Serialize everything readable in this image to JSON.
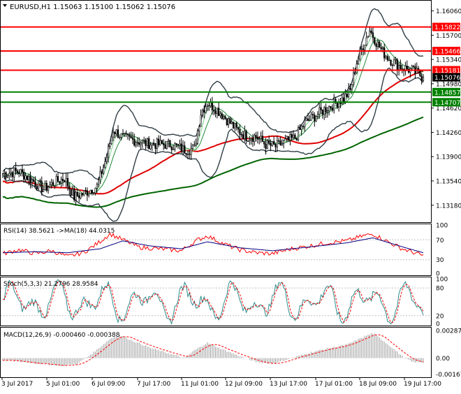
{
  "header": {
    "symbol_line": "EURUSD,H1  1.15063 1.15100 1.15062 1.15076",
    "rsi_label": "RSI(14) 38.5621  ->MA(18) 44.0315",
    "stoch_label": "Stoch(5,3,3) 21.2796 28.9584",
    "macd_label": "MACD(12,26,9) -0.000460 -0.000388"
  },
  "colors": {
    "background": "#ffffff",
    "border": "#000000",
    "candle": "#000000",
    "bollinger": "#2f3e46",
    "ma_fast1": "#1e8a3a",
    "ma_fast2": "#7bd389",
    "ma_red": "#e00000",
    "ma_green": "#006400",
    "level_red": "#ff0000",
    "level_green": "#008000",
    "label_red_bg": "#ff0000",
    "label_green_bg": "#008000",
    "current_bg": "#000000",
    "rsi_line": "#ff0000",
    "rsi_ma": "#000080",
    "stoch_main": "#2e8b8b",
    "stoch_signal": "#ff0000",
    "macd_hist": "#a0a0a0",
    "macd_signal": "#ff0000"
  },
  "chart_data": [
    {
      "type": "candlestick",
      "name": "main",
      "ylim": [
        1.1295,
        1.1618
      ],
      "y_ticks": [
        "1.16060",
        "1.15700",
        "1.15340",
        "1.14980",
        "1.14620",
        "1.14260",
        "1.13900",
        "1.13540",
        "1.13180"
      ],
      "levels": [
        {
          "value": 1.15822,
          "label": "1.15822",
          "color": "red"
        },
        {
          "value": 1.15466,
          "label": "1.15466",
          "color": "red"
        },
        {
          "value": 1.15181,
          "label": "1.15181",
          "color": "red"
        },
        {
          "value": 1.14857,
          "label": "1.14857",
          "color": "green"
        },
        {
          "value": 1.14707,
          "label": "1.14707",
          "color": "green"
        }
      ],
      "current_price": {
        "value": 1.15076,
        "label": "1.15076"
      },
      "x_labels": [
        "3 Jul 2017",
        "5 Jul 01:00",
        "6 Jul 09:00",
        "7 Jul 17:00",
        "11 Jul 01:00",
        "12 Jul 09:00",
        "13 Jul 17:00",
        "17 Jul 01:00",
        "18 Jul 09:00",
        "19 Jul 17:00"
      ],
      "anchors": [
        [
          0,
          1.1365
        ],
        [
          10,
          1.1368
        ],
        [
          18,
          1.1355
        ],
        [
          25,
          1.1342
        ],
        [
          32,
          1.1352
        ],
        [
          38,
          1.1358
        ],
        [
          44,
          1.133
        ],
        [
          50,
          1.1336
        ],
        [
          58,
          1.1346
        ],
        [
          64,
          1.139
        ],
        [
          68,
          1.143
        ],
        [
          74,
          1.1418
        ],
        [
          80,
          1.1415
        ],
        [
          88,
          1.141
        ],
        [
          96,
          1.1408
        ],
        [
          104,
          1.1408
        ],
        [
          112,
          1.14
        ],
        [
          118,
          1.1402
        ],
        [
          122,
          1.1455
        ],
        [
          126,
          1.147
        ],
        [
          132,
          1.146
        ],
        [
          138,
          1.1445
        ],
        [
          144,
          1.143
        ],
        [
          150,
          1.142
        ],
        [
          156,
          1.142
        ],
        [
          162,
          1.1408
        ],
        [
          168,
          1.1405
        ],
        [
          174,
          1.1412
        ],
        [
          180,
          1.1418
        ],
        [
          186,
          1.144
        ],
        [
          192,
          1.145
        ],
        [
          198,
          1.146
        ],
        [
          204,
          1.1468
        ],
        [
          210,
          1.1476
        ],
        [
          214,
          1.1488
        ],
        [
          218,
          1.153
        ],
        [
          222,
          1.1555
        ],
        [
          226,
          1.1578
        ],
        [
          230,
          1.156
        ],
        [
          234,
          1.1545
        ],
        [
          238,
          1.1535
        ],
        [
          242,
          1.1528
        ],
        [
          246,
          1.1522
        ],
        [
          252,
          1.1518
        ],
        [
          259,
          1.1508
        ]
      ],
      "bars": 260
    },
    {
      "type": "line",
      "name": "rsi",
      "ylim": [
        0,
        100
      ],
      "y_ticks": [
        "100",
        "70",
        "30",
        "0"
      ],
      "levels": [
        70,
        30
      ],
      "anchors": [
        [
          0,
          42
        ],
        [
          10,
          50
        ],
        [
          20,
          42
        ],
        [
          30,
          48
        ],
        [
          40,
          36
        ],
        [
          50,
          45
        ],
        [
          58,
          62
        ],
        [
          66,
          82
        ],
        [
          74,
          70
        ],
        [
          84,
          55
        ],
        [
          96,
          52
        ],
        [
          110,
          48
        ],
        [
          120,
          70
        ],
        [
          126,
          78
        ],
        [
          136,
          62
        ],
        [
          146,
          50
        ],
        [
          156,
          44
        ],
        [
          166,
          42
        ],
        [
          178,
          52
        ],
        [
          190,
          58
        ],
        [
          200,
          64
        ],
        [
          212,
          68
        ],
        [
          222,
          78
        ],
        [
          228,
          82
        ],
        [
          236,
          68
        ],
        [
          246,
          52
        ],
        [
          259,
          38
        ]
      ],
      "ma_anchors": [
        [
          0,
          44
        ],
        [
          20,
          46
        ],
        [
          40,
          44
        ],
        [
          60,
          52
        ],
        [
          74,
          68
        ],
        [
          90,
          58
        ],
        [
          110,
          52
        ],
        [
          126,
          66
        ],
        [
          146,
          54
        ],
        [
          166,
          48
        ],
        [
          190,
          56
        ],
        [
          212,
          64
        ],
        [
          228,
          74
        ],
        [
          246,
          56
        ],
        [
          259,
          44
        ]
      ]
    },
    {
      "type": "line",
      "name": "stochastic",
      "ylim": [
        0,
        100
      ],
      "y_ticks": [
        "100",
        "80",
        "20",
        "0"
      ],
      "levels": [
        80,
        20
      ],
      "current": [
        21.2796,
        28.9584
      ]
    },
    {
      "type": "histogram",
      "name": "macd",
      "ylim": [
        -0.00185,
        0.00295
      ],
      "y_ticks": [
        "0.00287",
        "0.00",
        "-0.00167"
      ],
      "anchors": [
        [
          0,
          -0.0002
        ],
        [
          12,
          -0.0004
        ],
        [
          24,
          -0.0006
        ],
        [
          36,
          -0.0008
        ],
        [
          46,
          -0.0006
        ],
        [
          56,
          0.0006
        ],
        [
          66,
          0.002
        ],
        [
          72,
          0.0024
        ],
        [
          80,
          0.0018
        ],
        [
          92,
          0.001
        ],
        [
          104,
          0.0004
        ],
        [
          112,
          0.0
        ],
        [
          118,
          0.0008
        ],
        [
          126,
          0.0016
        ],
        [
          134,
          0.001
        ],
        [
          146,
          0.0002
        ],
        [
          156,
          -0.0004
        ],
        [
          166,
          -0.0006
        ],
        [
          178,
          0.0
        ],
        [
          190,
          0.0006
        ],
        [
          200,
          0.001
        ],
        [
          212,
          0.0014
        ],
        [
          222,
          0.0022
        ],
        [
          228,
          0.0026
        ],
        [
          236,
          0.0016
        ],
        [
          246,
          0.0002
        ],
        [
          252,
          -0.0004
        ],
        [
          259,
          -0.00046
        ]
      ],
      "signal_current": -0.000388
    }
  ]
}
